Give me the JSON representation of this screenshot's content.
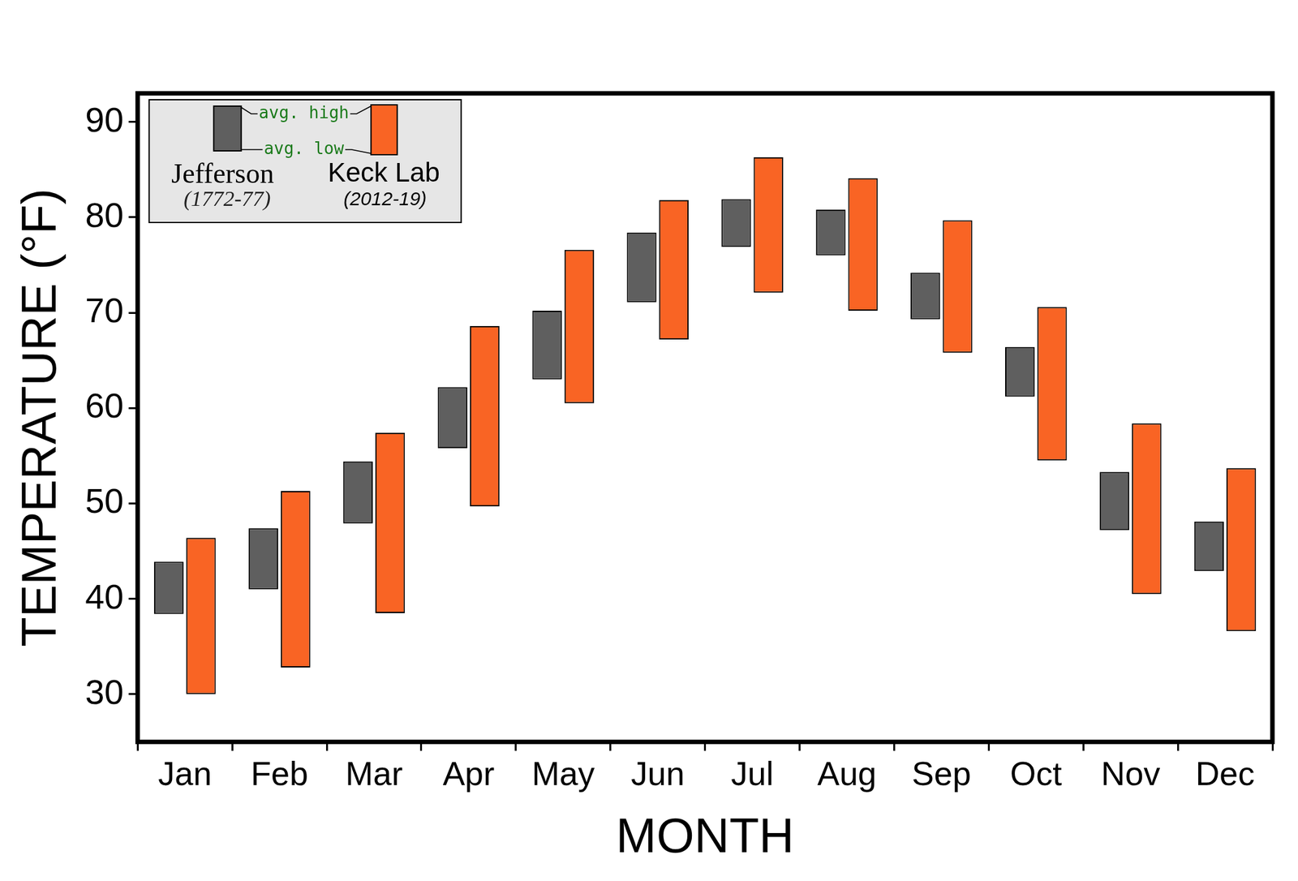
{
  "chart_data": {
    "type": "bar",
    "x_label": "MONTH",
    "y_label": "TEMPERATURE (°F)",
    "categories": [
      "Jan",
      "Feb",
      "Mar",
      "Apr",
      "May",
      "Jun",
      "Jul",
      "Aug",
      "Sep",
      "Oct",
      "Nov",
      "Dec"
    ],
    "series": [
      {
        "name": "Jefferson",
        "period": "(1772-77)",
        "color": "#5f5f5f",
        "values": [
          [
            38.4,
            43.9
          ],
          [
            41.0,
            47.4
          ],
          [
            47.9,
            54.4
          ],
          [
            55.8,
            62.2
          ],
          [
            63.0,
            70.2
          ],
          [
            71.1,
            78.4
          ],
          [
            76.9,
            81.9
          ],
          [
            76.0,
            80.8
          ],
          [
            69.3,
            74.2
          ],
          [
            61.2,
            66.4
          ],
          [
            47.2,
            53.3
          ],
          [
            42.9,
            48.1
          ]
        ]
      },
      {
        "name": "Keck Lab",
        "period": "(2012-19)",
        "color": "#f96424",
        "values": [
          [
            30.0,
            46.4
          ],
          [
            32.8,
            51.3
          ],
          [
            38.5,
            57.4
          ],
          [
            49.7,
            68.6
          ],
          [
            60.5,
            76.6
          ],
          [
            67.2,
            81.8
          ],
          [
            72.1,
            86.3
          ],
          [
            70.2,
            84.1
          ],
          [
            65.8,
            79.7
          ],
          [
            54.5,
            70.6
          ],
          [
            40.5,
            58.4
          ],
          [
            36.6,
            53.7
          ]
        ]
      }
    ],
    "annotations": [
      "avg. high",
      "avg. low"
    ],
    "ylim": [
      25,
      93
    ],
    "yticks": [
      30,
      40,
      50,
      60,
      70,
      80,
      90
    ],
    "legend": "upper left",
    "grid": false
  }
}
